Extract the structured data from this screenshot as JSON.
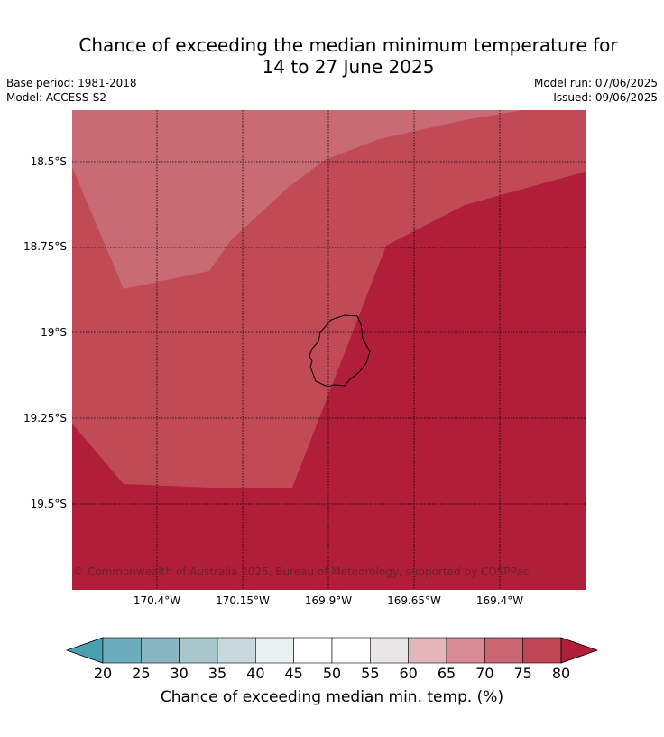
{
  "title_line1": "Chance of exceeding the median minimum temperature for",
  "title_line2": "14 to 27 June 2025",
  "base_period": "Base period: 1981-2018",
  "model": "Model: ACCESS-S2",
  "model_run": "Model run: 07/06/2025",
  "issued": "Issued: 09/06/2025",
  "copyright": "© Commonwealth of Australia 2025, Bureau of Meteorology, supported by COSPPac",
  "latitude_labels": [
    "18.5°S",
    "18.75°S",
    "19°S",
    "19.25°S",
    "19.5°S"
  ],
  "longitude_labels": [
    "170.4°W",
    "170.15°W",
    "169.9°W",
    "169.65°W",
    "169.4°W"
  ],
  "colorbar": {
    "ticks": [
      "20",
      "25",
      "30",
      "35",
      "40",
      "45",
      "50",
      "55",
      "60",
      "65",
      "70",
      "75",
      "80"
    ],
    "colors": [
      "#4a9fb0",
      "#6badbd",
      "#8ab6c2",
      "#a8c6cc",
      "#c9d8dc",
      "#eaf0f1",
      "#ffffff",
      "#ffffff",
      "#e9e6e7",
      "#e2b6ba",
      "#d68a93",
      "#c96671",
      "#c04655",
      "#b01e3a"
    ],
    "label": "Chance of exceeding median min. temp. (%)"
  },
  "map_colors": {
    "band_70_75": "#c96b74",
    "band_75_80": "#c04a56",
    "band_above_80": "#b01e3a",
    "grid": "#000000",
    "coastline": "#000000"
  }
}
